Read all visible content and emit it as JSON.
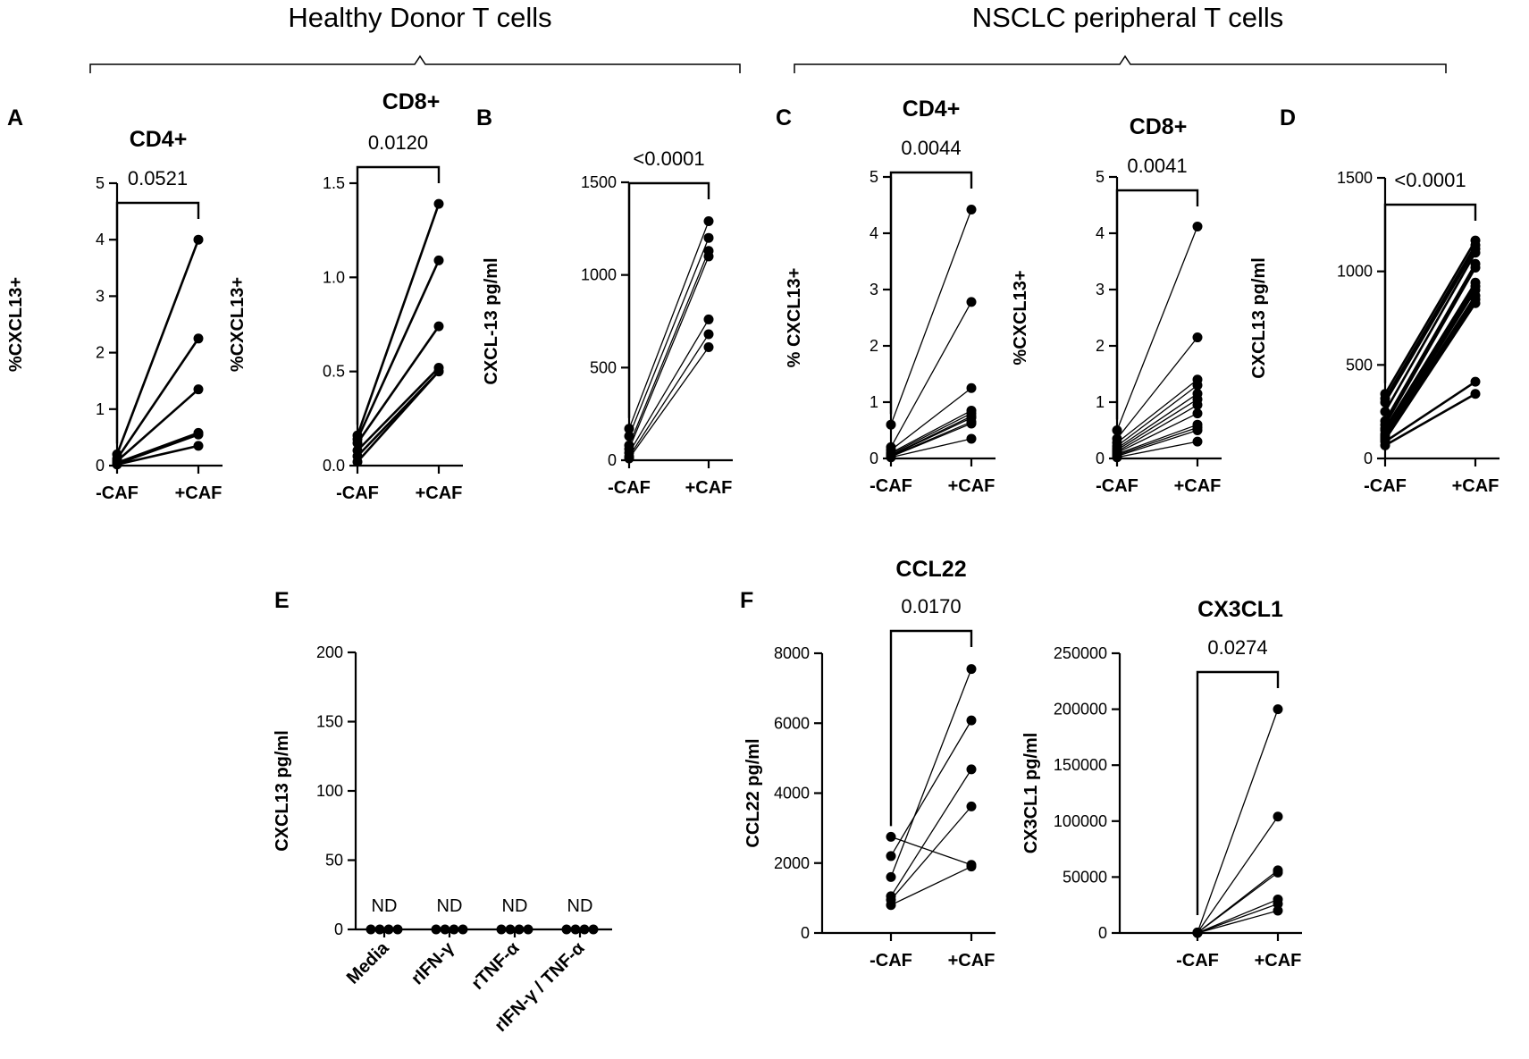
{
  "figure": {
    "group_titles": [
      "Healthy Donor T cells",
      "NSCLC peripheral T cells"
    ],
    "accent_color": "#000000"
  },
  "chart_data": [
    {
      "id": "A_CD4",
      "panel_letter": "A",
      "type": "paired-scatter",
      "title": "CD4+",
      "ylabel": "%CXCL13+",
      "categories": [
        "-CAF",
        "+CAF"
      ],
      "ylim": [
        0,
        5
      ],
      "yticks": [
        0,
        1,
        2,
        3,
        4,
        5
      ],
      "ytick_labels": [
        "0",
        "1",
        "2",
        "3",
        "4",
        "5"
      ],
      "pvalue": "0.0521",
      "pairs": [
        [
          0.2,
          4.0
        ],
        [
          0.12,
          2.25
        ],
        [
          0.08,
          1.35
        ],
        [
          0.05,
          0.58
        ],
        [
          0.03,
          0.55
        ],
        [
          0.02,
          0.35
        ]
      ],
      "line_weight": "bold"
    },
    {
      "id": "A_CD8",
      "type": "paired-scatter",
      "title": "CD8+",
      "ylabel": "%CXCL13+",
      "categories": [
        "-CAF",
        "+CAF"
      ],
      "ylim": [
        0,
        1.5
      ],
      "yticks": [
        0,
        0.5,
        1.0,
        1.5
      ],
      "ytick_labels": [
        "0.0",
        "0.5",
        "1.0",
        "1.5"
      ],
      "pvalue": "0.0120",
      "pairs": [
        [
          0.16,
          1.39
        ],
        [
          0.14,
          1.09
        ],
        [
          0.12,
          0.74
        ],
        [
          0.08,
          0.52
        ],
        [
          0.05,
          0.5
        ],
        [
          0.02,
          0.5
        ]
      ],
      "line_weight": "bold"
    },
    {
      "id": "B",
      "panel_letter": "B",
      "type": "paired-scatter",
      "title": "",
      "ylabel": "CXCL-13 pg/ml",
      "categories": [
        "-CAF",
        "+CAF"
      ],
      "ylim": [
        0,
        1500
      ],
      "yticks": [
        0,
        500,
        1000,
        1500
      ],
      "ytick_labels": [
        "0",
        "500",
        "1000",
        "1500"
      ],
      "pvalue": "<0.0001",
      "pairs": [
        [
          170,
          1290
        ],
        [
          130,
          1200
        ],
        [
          80,
          1130
        ],
        [
          60,
          1100
        ],
        [
          40,
          760
        ],
        [
          20,
          680
        ],
        [
          10,
          610
        ]
      ],
      "line_weight": "thin"
    },
    {
      "id": "C_CD4",
      "panel_letter": "C",
      "type": "paired-scatter",
      "title": "CD4+",
      "ylabel": "% CXCL13+",
      "categories": [
        "-CAF",
        "+CAF"
      ],
      "ylim": [
        0,
        5
      ],
      "yticks": [
        0,
        1,
        2,
        3,
        4,
        5
      ],
      "ytick_labels": [
        "0",
        "1",
        "2",
        "3",
        "4",
        "5"
      ],
      "pvalue": "0.0044",
      "pairs": [
        [
          0.6,
          4.42
        ],
        [
          0.2,
          2.78
        ],
        [
          0.15,
          1.25
        ],
        [
          0.1,
          0.85
        ],
        [
          0.08,
          0.8
        ],
        [
          0.06,
          0.75
        ],
        [
          0.05,
          0.72
        ],
        [
          0.04,
          0.65
        ],
        [
          0.03,
          0.62
        ],
        [
          0.02,
          0.35
        ]
      ],
      "line_weight": "thin"
    },
    {
      "id": "C_CD8",
      "type": "paired-scatter",
      "title": "CD8+",
      "ylabel": "%CXCL13+",
      "categories": [
        "-CAF",
        "+CAF"
      ],
      "ylim": [
        0,
        5
      ],
      "yticks": [
        0,
        1,
        2,
        3,
        4,
        5
      ],
      "ytick_labels": [
        "0",
        "1",
        "2",
        "3",
        "4",
        "5"
      ],
      "pvalue": "0.0041",
      "pairs": [
        [
          0.5,
          4.12
        ],
        [
          0.35,
          2.15
        ],
        [
          0.28,
          1.4
        ],
        [
          0.22,
          1.3
        ],
        [
          0.18,
          1.15
        ],
        [
          0.15,
          1.05
        ],
        [
          0.12,
          0.95
        ],
        [
          0.1,
          0.8
        ],
        [
          0.08,
          0.6
        ],
        [
          0.06,
          0.55
        ],
        [
          0.04,
          0.5
        ],
        [
          0.02,
          0.3
        ]
      ],
      "line_weight": "thin"
    },
    {
      "id": "D",
      "panel_letter": "D",
      "type": "paired-scatter",
      "title": "",
      "ylabel": "CXCL13 pg/ml",
      "categories": [
        "-CAF",
        "+CAF"
      ],
      "ylim": [
        0,
        1500
      ],
      "yticks": [
        0,
        500,
        1000,
        1500
      ],
      "ytick_labels": [
        "0",
        "500",
        "1000",
        "1500"
      ],
      "pvalue": "<0.0001",
      "pairs": [
        [
          345,
          1165
        ],
        [
          320,
          1140
        ],
        [
          300,
          1120
        ],
        [
          250,
          1100
        ],
        [
          200,
          1040
        ],
        [
          180,
          1020
        ],
        [
          160,
          940
        ],
        [
          150,
          920
        ],
        [
          130,
          900
        ],
        [
          120,
          870
        ],
        [
          110,
          850
        ],
        [
          100,
          830
        ],
        [
          90,
          410
        ],
        [
          70,
          345
        ]
      ],
      "line_weight": "bold"
    },
    {
      "id": "E",
      "panel_letter": "E",
      "type": "dot-strip",
      "title": "",
      "ylabel": "CXCL13 pg/ml",
      "categories": [
        "Media",
        "rIFN-γ",
        "rTNF-α",
        "rIFN-γ / TNF-α"
      ],
      "ylim": [
        0,
        200
      ],
      "yticks": [
        0,
        50,
        100,
        150,
        200
      ],
      "ytick_labels": [
        "0",
        "50",
        "100",
        "150",
        "200"
      ],
      "annotations": [
        "ND",
        "ND",
        "ND",
        "ND"
      ],
      "values": [
        [
          0,
          0,
          0,
          0
        ],
        [
          0,
          0,
          0,
          0
        ],
        [
          0,
          0,
          0,
          0
        ],
        [
          0,
          0,
          0,
          0
        ]
      ]
    },
    {
      "id": "F_CCL22",
      "panel_letter": "F",
      "type": "paired-scatter",
      "title": "CCL22",
      "ylabel": "CCL22 pg/ml",
      "categories": [
        "-CAF",
        "+CAF"
      ],
      "ylim": [
        0,
        8000
      ],
      "yticks": [
        0,
        2000,
        4000,
        6000,
        8000
      ],
      "ytick_labels": [
        "0",
        "2000",
        "4000",
        "6000",
        "8000"
      ],
      "pvalue": "0.0170",
      "pairs": [
        [
          2750,
          1950
        ],
        [
          2200,
          6080
        ],
        [
          1600,
          7550
        ],
        [
          1050,
          4680
        ],
        [
          950,
          3620
        ],
        [
          800,
          1900
        ]
      ],
      "line_weight": "thin"
    },
    {
      "id": "F_CX3CL1",
      "type": "paired-scatter",
      "title": "CX3CL1",
      "ylabel": "CX3CL1 pg/ml",
      "categories": [
        "-CAF",
        "+CAF"
      ],
      "ylim": [
        0,
        250000
      ],
      "yticks": [
        0,
        50000,
        100000,
        150000,
        200000,
        250000
      ],
      "ytick_labels": [
        "0",
        "50000",
        "100000",
        "150000",
        "200000",
        "250000"
      ],
      "pvalue": "0.0274",
      "pairs": [
        [
          500,
          200000
        ],
        [
          400,
          104000
        ],
        [
          300,
          56000
        ],
        [
          200,
          54000
        ],
        [
          150,
          30000
        ],
        [
          100,
          26000
        ],
        [
          50,
          20000
        ]
      ],
      "line_weight": "thin"
    }
  ]
}
